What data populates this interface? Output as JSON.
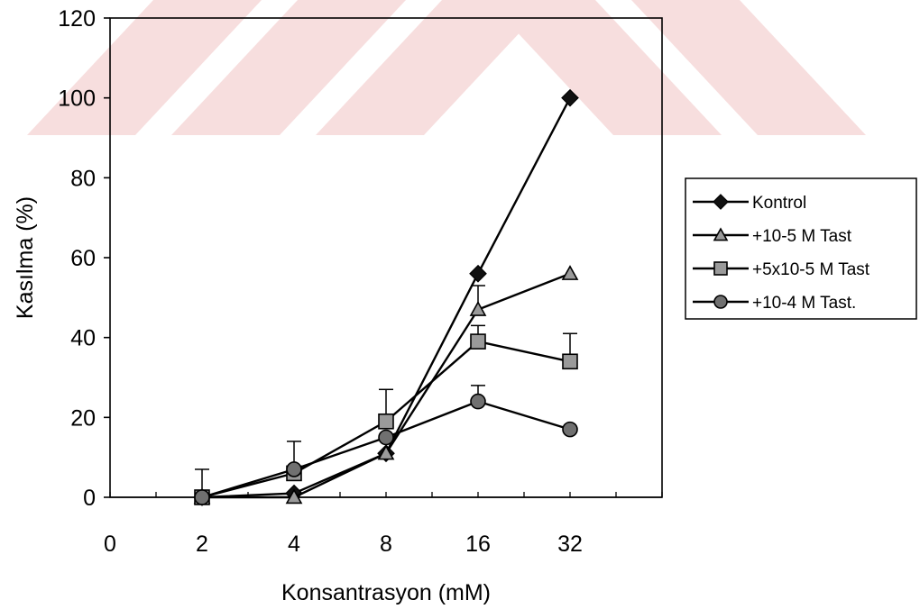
{
  "chart_data": {
    "type": "line",
    "title": "",
    "xlabel": "Konsantrasyon (mM)",
    "ylabel": "Kasılma (%)",
    "categories": [
      "0",
      "2",
      "4",
      "8",
      "16",
      "32"
    ],
    "ylim": [
      0,
      120
    ],
    "yticks": [
      0,
      20,
      40,
      60,
      80,
      100,
      120
    ],
    "grid": false,
    "legend_position": "right",
    "series": [
      {
        "name": "Kontrol",
        "marker": "diamond",
        "color": "#000000",
        "x": [
          "2",
          "4",
          "8",
          "16",
          "32"
        ],
        "values": [
          0,
          1,
          11,
          56,
          100
        ],
        "errors": [
          0,
          0,
          0,
          0,
          0
        ]
      },
      {
        "name": "+10-5 M Tast",
        "marker": "triangle",
        "color": "#000000",
        "x": [
          "2",
          "4",
          "8",
          "16",
          "32"
        ],
        "values": [
          0,
          0,
          11,
          47,
          56
        ],
        "errors": [
          0,
          0,
          0,
          6,
          0
        ]
      },
      {
        "name": "+5x10-5 M Tast",
        "marker": "square",
        "color": "#000000",
        "x": [
          "2",
          "4",
          "8",
          "16",
          "32"
        ],
        "values": [
          0,
          6,
          19,
          39,
          34
        ],
        "errors": [
          7,
          8,
          8,
          4,
          7
        ]
      },
      {
        "name": "+10-4 M Tast.",
        "marker": "circle",
        "color": "#000000",
        "x": [
          "2",
          "4",
          "8",
          "16",
          "32"
        ],
        "values": [
          0,
          7,
          15,
          24,
          17
        ],
        "errors": [
          0,
          0,
          0,
          4,
          0
        ]
      }
    ]
  },
  "watermark_color": "#f7dede"
}
